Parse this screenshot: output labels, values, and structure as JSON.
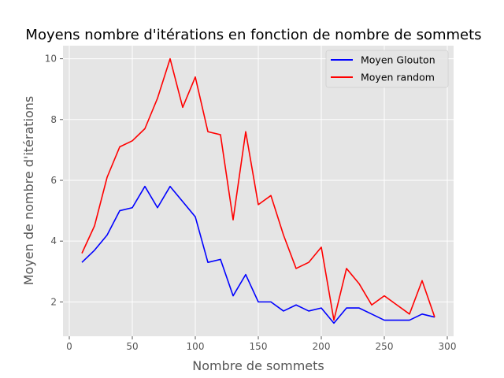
{
  "chart_data": {
    "type": "line",
    "title": "Moyens nombre d'itérations en fonction de nombre de sommets",
    "xlabel": "Nombre de sommets",
    "ylabel": "Moyen de nombre d'itérations",
    "xlim": [
      -5,
      305
    ],
    "ylim": [
      0.87,
      10.43
    ],
    "xticks": [
      0,
      50,
      100,
      150,
      200,
      250,
      300
    ],
    "yticks": [
      2,
      4,
      6,
      8,
      10
    ],
    "grid": true,
    "legend_position": "top-right",
    "x": [
      10,
      20,
      30,
      40,
      50,
      60,
      70,
      80,
      90,
      100,
      110,
      120,
      130,
      140,
      150,
      160,
      170,
      180,
      190,
      200,
      210,
      220,
      230,
      240,
      250,
      260,
      270,
      280,
      290
    ],
    "series": [
      {
        "name": "Moyen Glouton",
        "color": "#0000ff",
        "values": [
          3.3,
          3.7,
          4.2,
          5.0,
          5.1,
          5.8,
          5.1,
          5.8,
          5.3,
          4.8,
          3.3,
          3.4,
          2.2,
          2.9,
          2.0,
          2.0,
          1.7,
          1.9,
          1.7,
          1.8,
          1.3,
          1.8,
          1.8,
          1.6,
          1.4,
          1.4,
          1.4,
          1.6,
          1.5
        ]
      },
      {
        "name": "Moyen random",
        "color": "#ff0000",
        "values": [
          3.6,
          4.5,
          6.1,
          7.1,
          7.3,
          7.7,
          8.7,
          10.0,
          8.4,
          9.4,
          7.6,
          7.5,
          4.7,
          7.6,
          5.2,
          5.5,
          4.2,
          3.1,
          3.3,
          3.8,
          1.4,
          3.1,
          2.6,
          1.9,
          2.2,
          1.9,
          1.6,
          2.7,
          1.5
        ]
      }
    ]
  }
}
